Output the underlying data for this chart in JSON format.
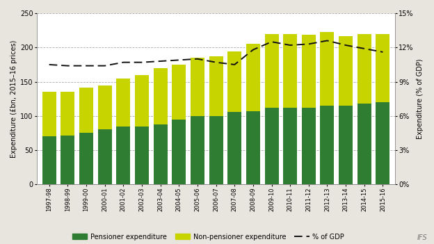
{
  "years": [
    "1997-98",
    "1998-99",
    "1999-00",
    "2000-01",
    "2001-02",
    "2002-03",
    "2003-04",
    "2004-05",
    "2005-06",
    "2006-07",
    "2007-08",
    "2008-09",
    "2009-10",
    "2010-11",
    "2011-12",
    "2012-13",
    "2013-14",
    "2014-15",
    "2015-16"
  ],
  "pensioner": [
    70,
    72,
    76,
    81,
    85,
    85,
    88,
    95,
    100,
    100,
    106,
    107,
    112,
    112,
    112,
    115,
    115,
    118,
    120
  ],
  "non_pensioner": [
    65,
    63,
    65,
    64,
    70,
    75,
    82,
    80,
    85,
    87,
    88,
    98,
    108,
    108,
    107,
    108,
    102,
    102,
    100
  ],
  "gdp_pct": [
    10.5,
    10.4,
    10.4,
    10.4,
    10.7,
    10.7,
    10.8,
    10.9,
    11.0,
    10.7,
    10.5,
    11.8,
    12.5,
    12.2,
    12.3,
    12.6,
    12.2,
    11.9,
    11.6
  ],
  "pensioner_color": "#2e7d32",
  "non_pensioner_color": "#c8d400",
  "gdp_line_color": "#111111",
  "background_color": "#e8e4de",
  "plot_bg_color": "#ffffff",
  "ylim_left": [
    0,
    250
  ],
  "ylim_right": [
    0,
    15
  ],
  "yticks_left": [
    0,
    50,
    100,
    150,
    200,
    250
  ],
  "yticks_right": [
    0,
    3,
    6,
    9,
    12,
    15
  ],
  "ytick_labels_right": [
    "0%",
    "3%",
    "6%",
    "9%",
    "12%",
    "15%"
  ],
  "ylabel_left": "Expenditure (£bn, 2015–16 prices)",
  "ylabel_right": "Expenditure (% of GDP)",
  "legend_pensioner": "Pensioner expenditure",
  "legend_non_pensioner": "Non-pensioner expenditure",
  "legend_gdp": "% of GDP",
  "bar_width": 0.75
}
